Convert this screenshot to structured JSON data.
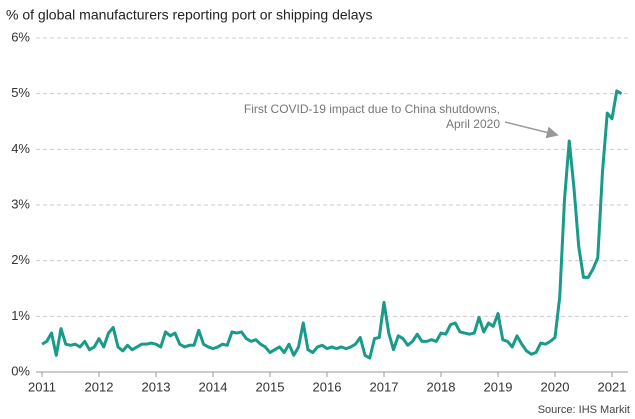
{
  "chart_data": {
    "type": "line",
    "title": "% of global manufacturers reporting port or shipping delays",
    "source": "Source: IHS Markit",
    "annotation": {
      "lines": [
        "First COVID-19 impact due to China shutdowns,",
        "April 2020"
      ],
      "index": 111
    },
    "categories": [
      "2011",
      null,
      null,
      null,
      null,
      null,
      null,
      null,
      null,
      null,
      null,
      null,
      "2012",
      null,
      null,
      null,
      null,
      null,
      null,
      null,
      null,
      null,
      null,
      null,
      "2013",
      null,
      null,
      null,
      null,
      null,
      null,
      null,
      null,
      null,
      null,
      null,
      "2014",
      null,
      null,
      null,
      null,
      null,
      null,
      null,
      null,
      null,
      null,
      null,
      "2015",
      null,
      null,
      null,
      null,
      null,
      null,
      null,
      null,
      null,
      null,
      null,
      "2016",
      null,
      null,
      null,
      null,
      null,
      null,
      null,
      null,
      null,
      null,
      null,
      "2017",
      null,
      null,
      null,
      null,
      null,
      null,
      null,
      null,
      null,
      null,
      null,
      "2018",
      null,
      null,
      null,
      null,
      null,
      null,
      null,
      null,
      null,
      null,
      null,
      "2019",
      null,
      null,
      null,
      null,
      null,
      null,
      null,
      null,
      null,
      null,
      null,
      "2020",
      null,
      null,
      null,
      null,
      null,
      null,
      null,
      null,
      null,
      null,
      null,
      "2021",
      null,
      null
    ],
    "series": [
      {
        "name": "Port or shipping delays",
        "color": "#1a9a88",
        "values": [
          0.5,
          0.55,
          0.7,
          0.3,
          0.78,
          0.5,
          0.48,
          0.5,
          0.45,
          0.55,
          0.4,
          0.45,
          0.6,
          0.45,
          0.7,
          0.8,
          0.45,
          0.38,
          0.48,
          0.4,
          0.45,
          0.5,
          0.5,
          0.52,
          0.5,
          0.45,
          0.72,
          0.65,
          0.7,
          0.5,
          0.45,
          0.48,
          0.48,
          0.75,
          0.5,
          0.45,
          0.42,
          0.45,
          0.5,
          0.48,
          0.72,
          0.7,
          0.72,
          0.6,
          0.55,
          0.58,
          0.5,
          0.45,
          0.35,
          0.4,
          0.45,
          0.35,
          0.5,
          0.3,
          0.45,
          0.88,
          0.4,
          0.35,
          0.45,
          0.48,
          0.42,
          0.45,
          0.42,
          0.45,
          0.42,
          0.45,
          0.5,
          0.62,
          0.3,
          0.25,
          0.6,
          0.62,
          1.25,
          0.7,
          0.4,
          0.65,
          0.6,
          0.48,
          0.55,
          0.68,
          0.55,
          0.55,
          0.58,
          0.55,
          0.7,
          0.68,
          0.85,
          0.88,
          0.72,
          0.7,
          0.68,
          0.7,
          0.98,
          0.72,
          0.88,
          0.82,
          1.05,
          0.58,
          0.55,
          0.45,
          0.65,
          0.5,
          0.38,
          0.32,
          0.35,
          0.52,
          0.5,
          0.55,
          0.62,
          1.35,
          3.1,
          4.15,
          3.3,
          2.25,
          1.7,
          1.7,
          1.85,
          2.05,
          3.6,
          4.65,
          4.55,
          5.05,
          5.0
        ]
      }
    ],
    "ylim": [
      0,
      6
    ],
    "yticks": [
      {
        "value": 0,
        "label": "0%"
      },
      {
        "value": 1,
        "label": "1%"
      },
      {
        "value": 2,
        "label": "2%"
      },
      {
        "value": 3,
        "label": "3%"
      },
      {
        "value": 4,
        "label": "4%"
      },
      {
        "value": 5,
        "label": "5%"
      },
      {
        "value": 6,
        "label": "6%"
      }
    ],
    "grid": true
  }
}
